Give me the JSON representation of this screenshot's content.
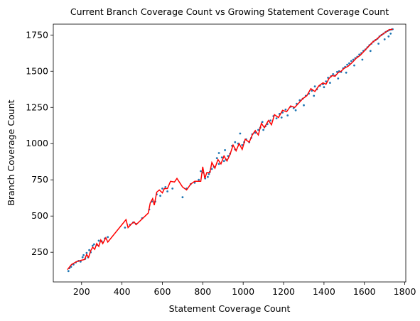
{
  "chart_data": {
    "type": "scatter",
    "title": "Current Branch Coverage Count vs Growing Statement Coverage Count",
    "xlabel": "Statement Coverage Count",
    "ylabel": "Branch Coverage Count",
    "xlim": [
      60,
      1805
    ],
    "ylim": [
      45,
      1825
    ],
    "xticks": [
      200,
      400,
      600,
      800,
      1000,
      1200,
      1400,
      1600,
      1800
    ],
    "yticks": [
      250,
      500,
      750,
      1000,
      1250,
      1500,
      1750
    ],
    "grid": false,
    "legend": "none",
    "series": [
      {
        "kind": "scatter",
        "color": "#1f77b4",
        "points": [
          [
            135,
            120
          ],
          [
            140,
            140
          ],
          [
            148,
            150
          ],
          [
            160,
            165
          ],
          [
            172,
            180
          ],
          [
            185,
            190
          ],
          [
            195,
            185
          ],
          [
            205,
            215
          ],
          [
            210,
            230
          ],
          [
            218,
            205
          ],
          [
            225,
            245
          ],
          [
            232,
            215
          ],
          [
            238,
            265
          ],
          [
            245,
            250
          ],
          [
            255,
            295
          ],
          [
            262,
            305
          ],
          [
            275,
            300
          ],
          [
            285,
            330
          ],
          [
            300,
            325
          ],
          [
            315,
            345
          ],
          [
            330,
            355
          ],
          [
            415,
            420
          ],
          [
            440,
            440
          ],
          [
            455,
            455
          ],
          [
            470,
            445
          ],
          [
            500,
            485
          ],
          [
            535,
            545
          ],
          [
            548,
            600
          ],
          [
            565,
            600
          ],
          [
            572,
            650
          ],
          [
            590,
            640
          ],
          [
            600,
            690
          ],
          [
            615,
            700
          ],
          [
            625,
            670
          ],
          [
            650,
            690
          ],
          [
            700,
            630
          ],
          [
            720,
            690
          ],
          [
            740,
            720
          ],
          [
            760,
            730
          ],
          [
            780,
            750
          ],
          [
            800,
            800
          ],
          [
            812,
            760
          ],
          [
            825,
            770
          ],
          [
            835,
            805
          ],
          [
            845,
            825
          ],
          [
            855,
            840
          ],
          [
            870,
            900
          ],
          [
            880,
            860
          ],
          [
            895,
            905
          ],
          [
            905,
            880
          ],
          [
            915,
            890
          ],
          [
            925,
            915
          ],
          [
            935,
            930
          ],
          [
            945,
            985
          ],
          [
            960,
            960
          ],
          [
            975,
            1000
          ],
          [
            985,
            1070
          ],
          [
            995,
            990
          ],
          [
            1005,
            1010
          ],
          [
            1015,
            1030
          ],
          [
            1030,
            1010
          ],
          [
            1045,
            1065
          ],
          [
            1060,
            1075
          ],
          [
            1075,
            1095
          ],
          [
            1085,
            1110
          ],
          [
            1095,
            1150
          ],
          [
            1110,
            1120
          ],
          [
            1120,
            1135
          ],
          [
            1135,
            1160
          ],
          [
            1150,
            1190
          ],
          [
            1165,
            1175
          ],
          [
            1180,
            1205
          ],
          [
            1195,
            1215
          ],
          [
            1210,
            1235
          ],
          [
            1220,
            1195
          ],
          [
            1235,
            1255
          ],
          [
            1250,
            1245
          ],
          [
            1265,
            1275
          ],
          [
            1280,
            1300
          ],
          [
            1295,
            1310
          ],
          [
            1310,
            1330
          ],
          [
            1325,
            1345
          ],
          [
            1340,
            1365
          ],
          [
            1355,
            1395
          ],
          [
            1365,
            1375
          ],
          [
            1380,
            1400
          ],
          [
            1395,
            1410
          ],
          [
            1410,
            1430
          ],
          [
            1420,
            1455
          ],
          [
            1435,
            1465
          ],
          [
            1445,
            1480
          ],
          [
            1455,
            1470
          ],
          [
            1465,
            1495
          ],
          [
            1475,
            1500
          ],
          [
            1485,
            1495
          ],
          [
            1495,
            1520
          ],
          [
            1505,
            1530
          ],
          [
            1515,
            1545
          ],
          [
            1525,
            1555
          ],
          [
            1535,
            1570
          ],
          [
            1545,
            1580
          ],
          [
            1555,
            1590
          ],
          [
            1565,
            1600
          ],
          [
            1575,
            1615
          ],
          [
            1585,
            1625
          ],
          [
            1595,
            1640
          ],
          [
            1605,
            1650
          ],
          [
            1615,
            1665
          ],
          [
            1625,
            1680
          ],
          [
            1635,
            1690
          ],
          [
            1645,
            1705
          ],
          [
            1655,
            1715
          ],
          [
            1665,
            1725
          ],
          [
            1675,
            1740
          ],
          [
            1685,
            1750
          ],
          [
            1695,
            1760
          ],
          [
            1705,
            1770
          ],
          [
            1715,
            1778
          ],
          [
            1725,
            1785
          ],
          [
            1735,
            1788
          ],
          [
            1740,
            1790
          ],
          [
            790,
            810
          ],
          [
            830,
            790
          ],
          [
            880,
            935
          ],
          [
            910,
            955
          ],
          [
            960,
            1010
          ],
          [
            1040,
            1040
          ],
          [
            1100,
            1095
          ],
          [
            1190,
            1180
          ],
          [
            1260,
            1230
          ],
          [
            1300,
            1265
          ],
          [
            1350,
            1330
          ],
          [
            1400,
            1390
          ],
          [
            1430,
            1420
          ],
          [
            1470,
            1450
          ],
          [
            1510,
            1490
          ],
          [
            1550,
            1540
          ],
          [
            1590,
            1580
          ],
          [
            1630,
            1640
          ],
          [
            1670,
            1690
          ],
          [
            1700,
            1720
          ],
          [
            1720,
            1740
          ],
          [
            1730,
            1760
          ]
        ]
      },
      {
        "kind": "line",
        "color": "#ff0000",
        "points": [
          [
            130,
            130
          ],
          [
            150,
            165
          ],
          [
            175,
            185
          ],
          [
            200,
            195
          ],
          [
            215,
            200
          ],
          [
            225,
            235
          ],
          [
            235,
            215
          ],
          [
            245,
            260
          ],
          [
            255,
            285
          ],
          [
            265,
            270
          ],
          [
            275,
            310
          ],
          [
            285,
            290
          ],
          [
            295,
            335
          ],
          [
            305,
            310
          ],
          [
            320,
            350
          ],
          [
            330,
            320
          ],
          [
            420,
            475
          ],
          [
            430,
            420
          ],
          [
            450,
            450
          ],
          [
            460,
            460
          ],
          [
            470,
            440
          ],
          [
            530,
            520
          ],
          [
            540,
            590
          ],
          [
            552,
            620
          ],
          [
            560,
            575
          ],
          [
            572,
            665
          ],
          [
            585,
            680
          ],
          [
            600,
            660
          ],
          [
            610,
            690
          ],
          [
            625,
            690
          ],
          [
            640,
            740
          ],
          [
            660,
            735
          ],
          [
            672,
            760
          ],
          [
            700,
            700
          ],
          [
            720,
            680
          ],
          [
            740,
            720
          ],
          [
            760,
            740
          ],
          [
            790,
            740
          ],
          [
            800,
            840
          ],
          [
            810,
            760
          ],
          [
            820,
            800
          ],
          [
            835,
            800
          ],
          [
            845,
            870
          ],
          [
            860,
            830
          ],
          [
            875,
            890
          ],
          [
            890,
            860
          ],
          [
            905,
            915
          ],
          [
            920,
            880
          ],
          [
            935,
            925
          ],
          [
            950,
            990
          ],
          [
            965,
            950
          ],
          [
            980,
            1000
          ],
          [
            995,
            960
          ],
          [
            1010,
            1030
          ],
          [
            1030,
            1010
          ],
          [
            1045,
            1060
          ],
          [
            1060,
            1090
          ],
          [
            1075,
            1060
          ],
          [
            1090,
            1140
          ],
          [
            1105,
            1110
          ],
          [
            1125,
            1160
          ],
          [
            1140,
            1130
          ],
          [
            1155,
            1200
          ],
          [
            1175,
            1180
          ],
          [
            1195,
            1230
          ],
          [
            1215,
            1220
          ],
          [
            1235,
            1260
          ],
          [
            1255,
            1250
          ],
          [
            1275,
            1280
          ],
          [
            1295,
            1310
          ],
          [
            1315,
            1330
          ],
          [
            1335,
            1380
          ],
          [
            1355,
            1360
          ],
          [
            1375,
            1400
          ],
          [
            1395,
            1420
          ],
          [
            1410,
            1410
          ],
          [
            1425,
            1450
          ],
          [
            1440,
            1470
          ],
          [
            1455,
            1465
          ],
          [
            1470,
            1490
          ],
          [
            1485,
            1500
          ],
          [
            1500,
            1520
          ],
          [
            1520,
            1535
          ],
          [
            1540,
            1560
          ],
          [
            1560,
            1590
          ],
          [
            1580,
            1610
          ],
          [
            1600,
            1640
          ],
          [
            1620,
            1670
          ],
          [
            1640,
            1700
          ],
          [
            1660,
            1720
          ],
          [
            1680,
            1745
          ],
          [
            1700,
            1765
          ],
          [
            1720,
            1785
          ],
          [
            1740,
            1790
          ]
        ]
      }
    ]
  }
}
